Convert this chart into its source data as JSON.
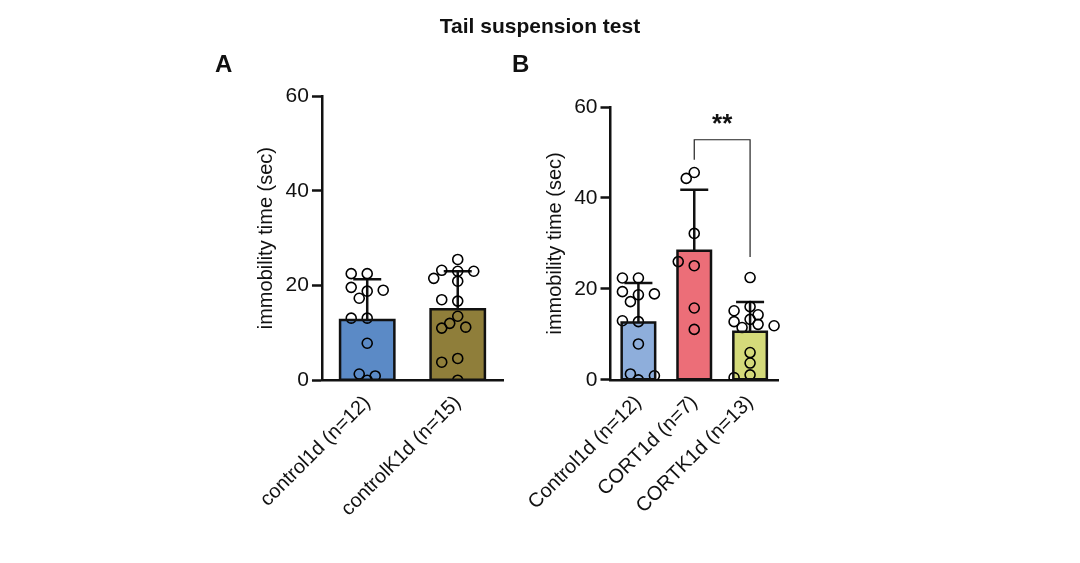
{
  "chart_data": [
    {
      "type": "bar",
      "title": "Tail suspension test",
      "annotations": [
        "A"
      ],
      "ylabel": "immobility time (sec)",
      "categories": [
        "control1d (n=12)",
        "controlK1d (n=15)"
      ],
      "ylim": [
        0,
        60
      ],
      "yticks": [
        0,
        20,
        40,
        60
      ],
      "grid": false,
      "legend": false,
      "marker": "circle",
      "series": [
        {
          "type": "bar",
          "values": [
            12.7,
            15.0
          ],
          "colors": [
            "#5b8ac6",
            "#8f7e3a"
          ],
          "errors": [
            8.6,
            8.0
          ]
        },
        {
          "type": "scatter",
          "color": "#000000",
          "x": [
            "control1d (n=12)",
            "control1d (n=12)",
            "control1d (n=12)",
            "control1d (n=12)",
            "control1d (n=12)",
            "control1d (n=12)",
            "control1d (n=12)",
            "control1d (n=12)",
            "control1d (n=12)",
            "control1d (n=12)",
            "control1d (n=12)",
            "control1d (n=12)",
            "controlK1d (n=15)",
            "controlK1d (n=15)",
            "controlK1d (n=15)",
            "controlK1d (n=15)",
            "controlK1d (n=15)",
            "controlK1d (n=15)",
            "controlK1d (n=15)",
            "controlK1d (n=15)",
            "controlK1d (n=15)",
            "controlK1d (n=15)",
            "controlK1d (n=15)",
            "controlK1d (n=15)",
            "controlK1d (n=15)",
            "controlK1d (n=15)",
            "controlK1d (n=15)"
          ],
          "values": [
            22.5,
            22.5,
            18.8,
            19.6,
            19.0,
            17.3,
            13.1,
            13.1,
            7.8,
            0,
            1.3,
            0.9,
            25.5,
            23.0,
            23.2,
            23.0,
            20.9,
            21.5,
            16.7,
            17.0,
            13.5,
            12.0,
            11.2,
            11.0,
            4.6,
            3.8,
            0
          ]
        }
      ]
    },
    {
      "type": "bar",
      "annotations": [
        "B",
        "**"
      ],
      "ylabel": "immobility time (sec)",
      "categories": [
        "Control1d (n=12)",
        "CORT1d (n=7)",
        "CORTK1d (n=13)"
      ],
      "ylim": [
        0,
        60
      ],
      "yticks": [
        0,
        20,
        40,
        60
      ],
      "grid": false,
      "legend": false,
      "marker": "circle",
      "series": [
        {
          "type": "bar",
          "values": [
            12.6,
            28.4,
            10.6
          ],
          "colors": [
            "#8eaedb",
            "#ec6e78",
            "#d4da7a"
          ],
          "errors": [
            8.7,
            13.4,
            6.5
          ]
        },
        {
          "type": "scatter",
          "color": "#000000",
          "x": [
            "Control1d (n=12)",
            "Control1d (n=12)",
            "Control1d (n=12)",
            "Control1d (n=12)",
            "Control1d (n=12)",
            "Control1d (n=12)",
            "Control1d (n=12)",
            "Control1d (n=12)",
            "Control1d (n=12)",
            "Control1d (n=12)",
            "Control1d (n=12)",
            "Control1d (n=12)",
            "CORT1d (n=7)",
            "CORT1d (n=7)",
            "CORT1d (n=7)",
            "CORT1d (n=7)",
            "CORT1d (n=7)",
            "CORT1d (n=7)",
            "CORT1d (n=7)",
            "CORTK1d (n=13)",
            "CORTK1d (n=13)",
            "CORTK1d (n=13)",
            "CORTK1d (n=13)",
            "CORTK1d (n=13)",
            "CORTK1d (n=13)",
            "CORTK1d (n=13)",
            "CORTK1d (n=13)",
            "CORTK1d (n=13)",
            "CORTK1d (n=13)",
            "CORTK1d (n=13)",
            "CORTK1d (n=13)",
            "CORTK1d (n=13)"
          ],
          "values": [
            22.4,
            22.4,
            18.7,
            19.4,
            18.9,
            17.2,
            12.8,
            13.0,
            7.9,
            0,
            1.3,
            0.9,
            45.6,
            44.3,
            32.2,
            25.1,
            26.0,
            15.8,
            11.1,
            22.5,
            16.1,
            15.2,
            14.3,
            13.3,
            12.8,
            12.2,
            11.9,
            11.5,
            6.0,
            3.7,
            1.1,
            0.5
          ]
        }
      ]
    }
  ]
}
